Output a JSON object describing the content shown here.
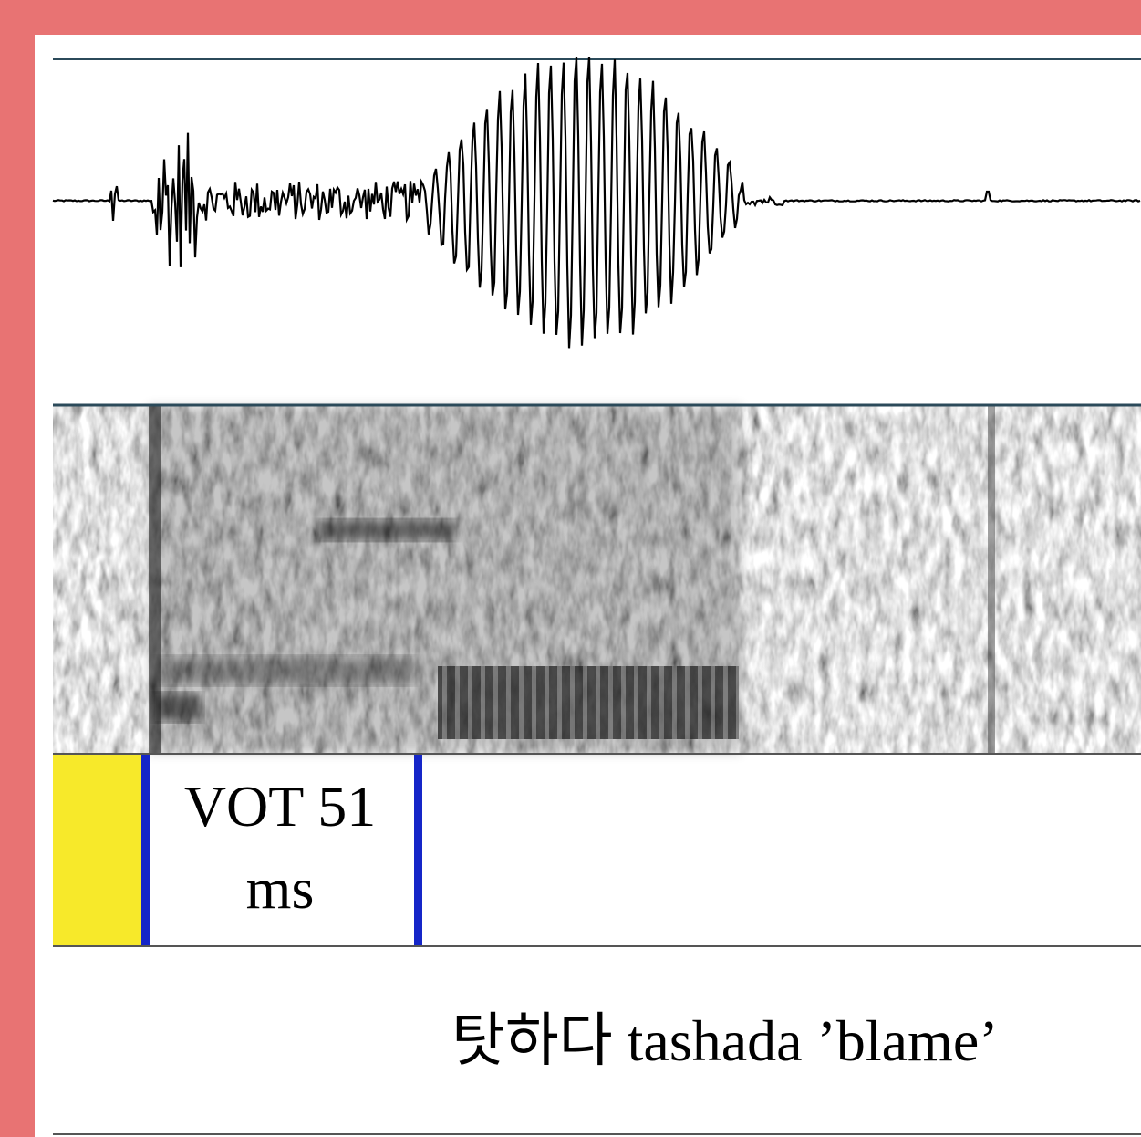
{
  "annotation": {
    "label_line1": "VOT 51",
    "label_line2": "ms"
  },
  "caption": "탓하다 tashada ’blame’"
}
